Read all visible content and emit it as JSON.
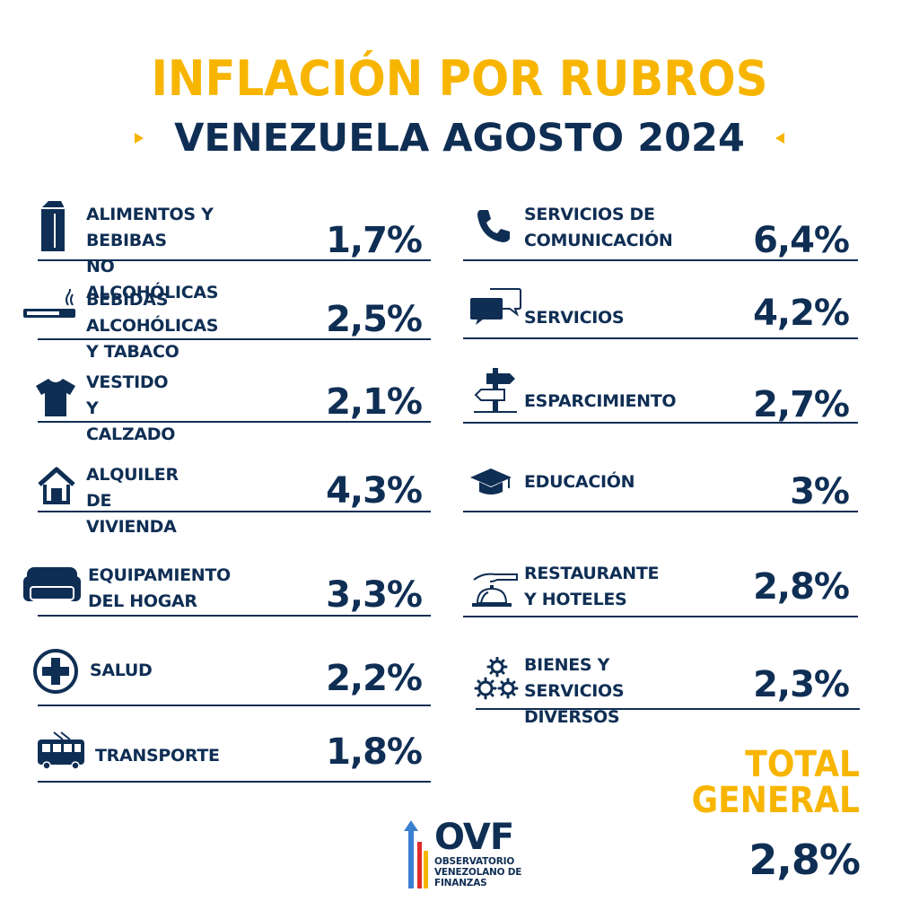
{
  "header": {
    "title": "INFLACIÓN POR RUBROS",
    "subtitle": "VENEZUELA AGOSTO 2024"
  },
  "items": [
    {
      "label": "ALIMENTOS Y BEBIBAS\nNO ALCOHÓLICAS",
      "value": "1,7%",
      "icon": "milk-carton-icon"
    },
    {
      "label": "BEBIDAS ALCOHÓLICAS\nY TABACO",
      "value": "2,5%",
      "icon": "cigarette-icon"
    },
    {
      "label": "VESTIDO Y\nCALZADO",
      "value": "2,1%",
      "icon": "t-shirt-icon"
    },
    {
      "label": "ALQUILER\nDE VIVIENDA",
      "value": "4,3%",
      "icon": "house-icon"
    },
    {
      "label": "EQUIPAMIENTO\nDEL HOGAR",
      "value": "3,3%",
      "icon": "sofa-icon"
    },
    {
      "label": "SALUD",
      "value": "2,2%",
      "icon": "medical-cross-icon"
    },
    {
      "label": "TRANSPORTE",
      "value": "1,8%",
      "icon": "trolleybus-icon"
    },
    {
      "label": "SERVICIOS DE\nCOMUNICACIÓN",
      "value": "6,4%",
      "icon": "phone-icon"
    },
    {
      "label": "SERVICIOS",
      "value": "4,2%",
      "icon": "chat-bubbles-icon"
    },
    {
      "label": "ESPARCIMIENTO",
      "value": "2,7%",
      "icon": "signpost-icon"
    },
    {
      "label": "EDUCACIÓN",
      "value": "3%",
      "icon": "graduation-cap-icon"
    },
    {
      "label": "RESTAURANTE\nY HOTELES",
      "value": "2,8%",
      "icon": "service-bell-icon"
    },
    {
      "label": "BIENES Y\nSERVICIOS DIVERSOS",
      "value": "2,3%",
      "icon": "gears-icon"
    }
  ],
  "total": {
    "label": "TOTAL\nGENERAL",
    "value": "2,8%"
  },
  "logo": {
    "name": "OVF",
    "sub": "OBSERVATORIO\nVENEZOLANO DE\nFINANZAS",
    "icon": "ovf-arrows-icon"
  },
  "colors": {
    "navy": "#0f2e54",
    "yellow": "#f7b500"
  }
}
